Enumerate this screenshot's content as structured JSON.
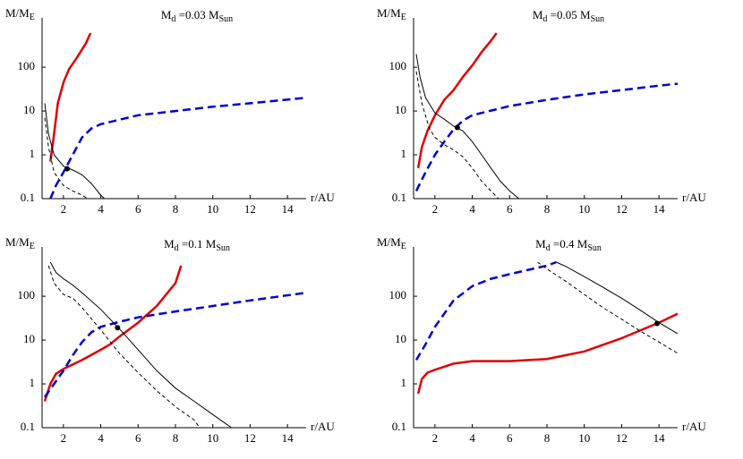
{
  "chart_data": [
    {
      "type": "line",
      "ylabel": [
        "M/M",
        "E"
      ],
      "title": [
        "M",
        "d",
        " =0.03 M",
        "Sun"
      ],
      "xlabel": "r/AU",
      "xlim": [
        1,
        15
      ],
      "ylim": [
        0.1,
        600
      ],
      "xticks": [
        2,
        4,
        6,
        8,
        10,
        12,
        14
      ],
      "yticks": [
        0.1,
        1,
        10,
        100
      ],
      "log_y": true,
      "series": [
        {
          "color": "#e00000",
          "dash": "solid",
          "width": 2.5,
          "x": [
            1.3,
            1.5,
            1.7,
            2,
            2.3,
            2.7,
            3.2,
            3.45
          ],
          "values": [
            0.7,
            3,
            15,
            45,
            90,
            160,
            350,
            600
          ]
        },
        {
          "color": "#0000d0",
          "dash": "dashed",
          "width": 2.5,
          "x": [
            1.3,
            1.6,
            2,
            2.5,
            3,
            3.5,
            4,
            6,
            8,
            10,
            12,
            15
          ],
          "values": [
            0.1,
            0.2,
            0.4,
            1,
            2.5,
            4,
            5,
            8,
            10,
            12.5,
            15,
            20
          ]
        },
        {
          "color": "#000000",
          "dash": "solid",
          "width": 1,
          "x": [
            1,
            1.2,
            1.5,
            2,
            2.5,
            3,
            3.5,
            4,
            4.2
          ],
          "values": [
            15,
            3,
            1,
            0.55,
            0.45,
            0.35,
            0.22,
            0.12,
            0.1
          ]
        },
        {
          "color": "#000000",
          "dash": "dashed",
          "width": 1,
          "x": [
            1,
            1.2,
            1.5,
            2,
            2.5,
            3,
            3.3
          ],
          "values": [
            7,
            1.5,
            0.4,
            0.2,
            0.15,
            0.12,
            0.1
          ]
        }
      ],
      "markers": {
        "color": "#000000",
        "x": [
          2.2
        ],
        "values": [
          0.48
        ]
      }
    },
    {
      "type": "line",
      "ylabel": [
        "M/M",
        "E"
      ],
      "title": [
        "M",
        "d",
        " =0.05 M",
        "Sun"
      ],
      "xlabel": "r/AU",
      "xlim": [
        1,
        15
      ],
      "ylim": [
        0.1,
        600
      ],
      "xticks": [
        2,
        4,
        6,
        8,
        10,
        12,
        14
      ],
      "yticks": [
        0.1,
        1,
        10,
        100
      ],
      "log_y": true,
      "series": [
        {
          "color": "#e00000",
          "dash": "solid",
          "width": 2.5,
          "x": [
            1.1,
            1.3,
            1.6,
            2,
            2.5,
            3,
            3.5,
            4,
            4.5,
            5,
            5.3
          ],
          "values": [
            0.5,
            1.5,
            3.5,
            8,
            18,
            30,
            60,
            110,
            220,
            400,
            600
          ]
        },
        {
          "color": "#0000d0",
          "dash": "dashed",
          "width": 2.5,
          "x": [
            1,
            1.5,
            2,
            2.5,
            3,
            3.5,
            4,
            6,
            8,
            10,
            12,
            14,
            15
          ],
          "values": [
            0.15,
            0.4,
            1,
            2,
            3.8,
            6,
            8,
            13,
            18,
            24,
            30,
            38,
            42
          ]
        },
        {
          "color": "#000000",
          "dash": "solid",
          "width": 1,
          "x": [
            1,
            1.2,
            1.5,
            2,
            2.5,
            3,
            3.5,
            4,
            4.5,
            5,
            5.5,
            6,
            6.5
          ],
          "values": [
            200,
            60,
            20,
            9,
            6.5,
            4.5,
            3.5,
            2,
            1,
            0.5,
            0.25,
            0.15,
            0.1
          ]
        },
        {
          "color": "#000000",
          "dash": "dashed",
          "width": 1,
          "x": [
            1,
            1.3,
            1.7,
            2,
            2.5,
            3,
            3.5,
            4,
            4.5,
            5,
            5.4
          ],
          "values": [
            80,
            15,
            4,
            2.5,
            1.7,
            1.3,
            0.9,
            0.5,
            0.25,
            0.15,
            0.1
          ]
        }
      ],
      "markers": {
        "color": "#000000",
        "x": [
          3.2
        ],
        "values": [
          4.2
        ]
      }
    },
    {
      "type": "line",
      "ylabel": [
        "M/M",
        "E"
      ],
      "title": [
        "M",
        "d",
        " =0.1 M",
        "Sun"
      ],
      "xlabel": "r/AU",
      "xlim": [
        1,
        15
      ],
      "ylim": [
        0.1,
        600
      ],
      "xticks": [
        2,
        4,
        6,
        8,
        10,
        12,
        14
      ],
      "yticks": [
        0.1,
        1,
        10,
        100
      ],
      "log_y": true,
      "series": [
        {
          "color": "#e00000",
          "dash": "solid",
          "width": 2.5,
          "x": [
            1,
            1.3,
            1.6,
            2,
            3,
            4,
            4.5,
            5,
            6,
            7,
            8,
            8.3
          ],
          "values": [
            0.4,
            1,
            1.7,
            2.2,
            3.5,
            6,
            8,
            12,
            25,
            60,
            200,
            500
          ]
        },
        {
          "color": "#0000d0",
          "dash": "dashed",
          "width": 2.5,
          "x": [
            1,
            1.5,
            2,
            2.5,
            3,
            3.5,
            4,
            5,
            6,
            8,
            10,
            12,
            15
          ],
          "values": [
            0.5,
            1,
            2,
            4.5,
            9,
            15,
            20,
            26,
            33,
            45,
            60,
            80,
            120
          ]
        },
        {
          "color": "#000000",
          "dash": "solid",
          "width": 1,
          "x": [
            1.3,
            1.6,
            2,
            2.5,
            3,
            4,
            5,
            6,
            7,
            8,
            9,
            10,
            11
          ],
          "values": [
            600,
            350,
            250,
            180,
            120,
            50,
            18,
            6,
            2,
            0.8,
            0.4,
            0.2,
            0.1
          ]
        },
        {
          "color": "#000000",
          "dash": "dashed",
          "width": 1,
          "x": [
            1.2,
            1.5,
            2,
            2.5,
            3,
            4,
            5,
            6,
            7,
            8,
            9,
            9.3
          ],
          "values": [
            500,
            200,
            110,
            90,
            55,
            17,
            5,
            1.8,
            0.7,
            0.3,
            0.15,
            0.1
          ]
        }
      ],
      "markers": {
        "color": "#000000",
        "x": [
          4.9
        ],
        "values": [
          19
        ]
      }
    },
    {
      "type": "line",
      "ylabel": [
        "M/M",
        "E"
      ],
      "title": [
        "M",
        "d",
        " =0.4 M",
        "Sun"
      ],
      "xlabel": "r/AU",
      "xlim": [
        1,
        15
      ],
      "ylim": [
        0.1,
        600
      ],
      "xticks": [
        2,
        4,
        6,
        8,
        10,
        12,
        14
      ],
      "yticks": [
        0.1,
        1,
        10,
        100
      ],
      "log_y": true,
      "series": [
        {
          "color": "#e00000",
          "dash": "solid",
          "width": 2.5,
          "x": [
            1.1,
            1.3,
            1.6,
            2,
            3,
            4,
            6,
            8,
            10,
            12,
            14,
            15
          ],
          "values": [
            0.6,
            1.3,
            1.8,
            2.1,
            2.9,
            3.3,
            3.3,
            3.7,
            5.5,
            11,
            25,
            40
          ]
        },
        {
          "color": "#0000d0",
          "dash": "dashed",
          "width": 2.5,
          "x": [
            1,
            1.5,
            2,
            3,
            4,
            5,
            6,
            7,
            8,
            8.5
          ],
          "values": [
            3.5,
            8,
            20,
            80,
            170,
            250,
            320,
            400,
            500,
            600
          ]
        },
        {
          "color": "#000000",
          "dash": "solid",
          "width": 1,
          "x": [
            8.5,
            9,
            10,
            11,
            12,
            13,
            14,
            15
          ],
          "values": [
            600,
            480,
            280,
            160,
            90,
            48,
            25,
            14
          ]
        },
        {
          "color": "#000000",
          "dash": "dashed",
          "width": 1,
          "x": [
            7.5,
            8,
            9,
            10,
            11,
            12,
            13,
            14,
            15
          ],
          "values": [
            600,
            420,
            220,
            110,
            55,
            30,
            16,
            9,
            5
          ]
        }
      ],
      "markers": {
        "color": "#000000",
        "x": [
          13.9
        ],
        "values": [
          24
        ]
      }
    }
  ]
}
